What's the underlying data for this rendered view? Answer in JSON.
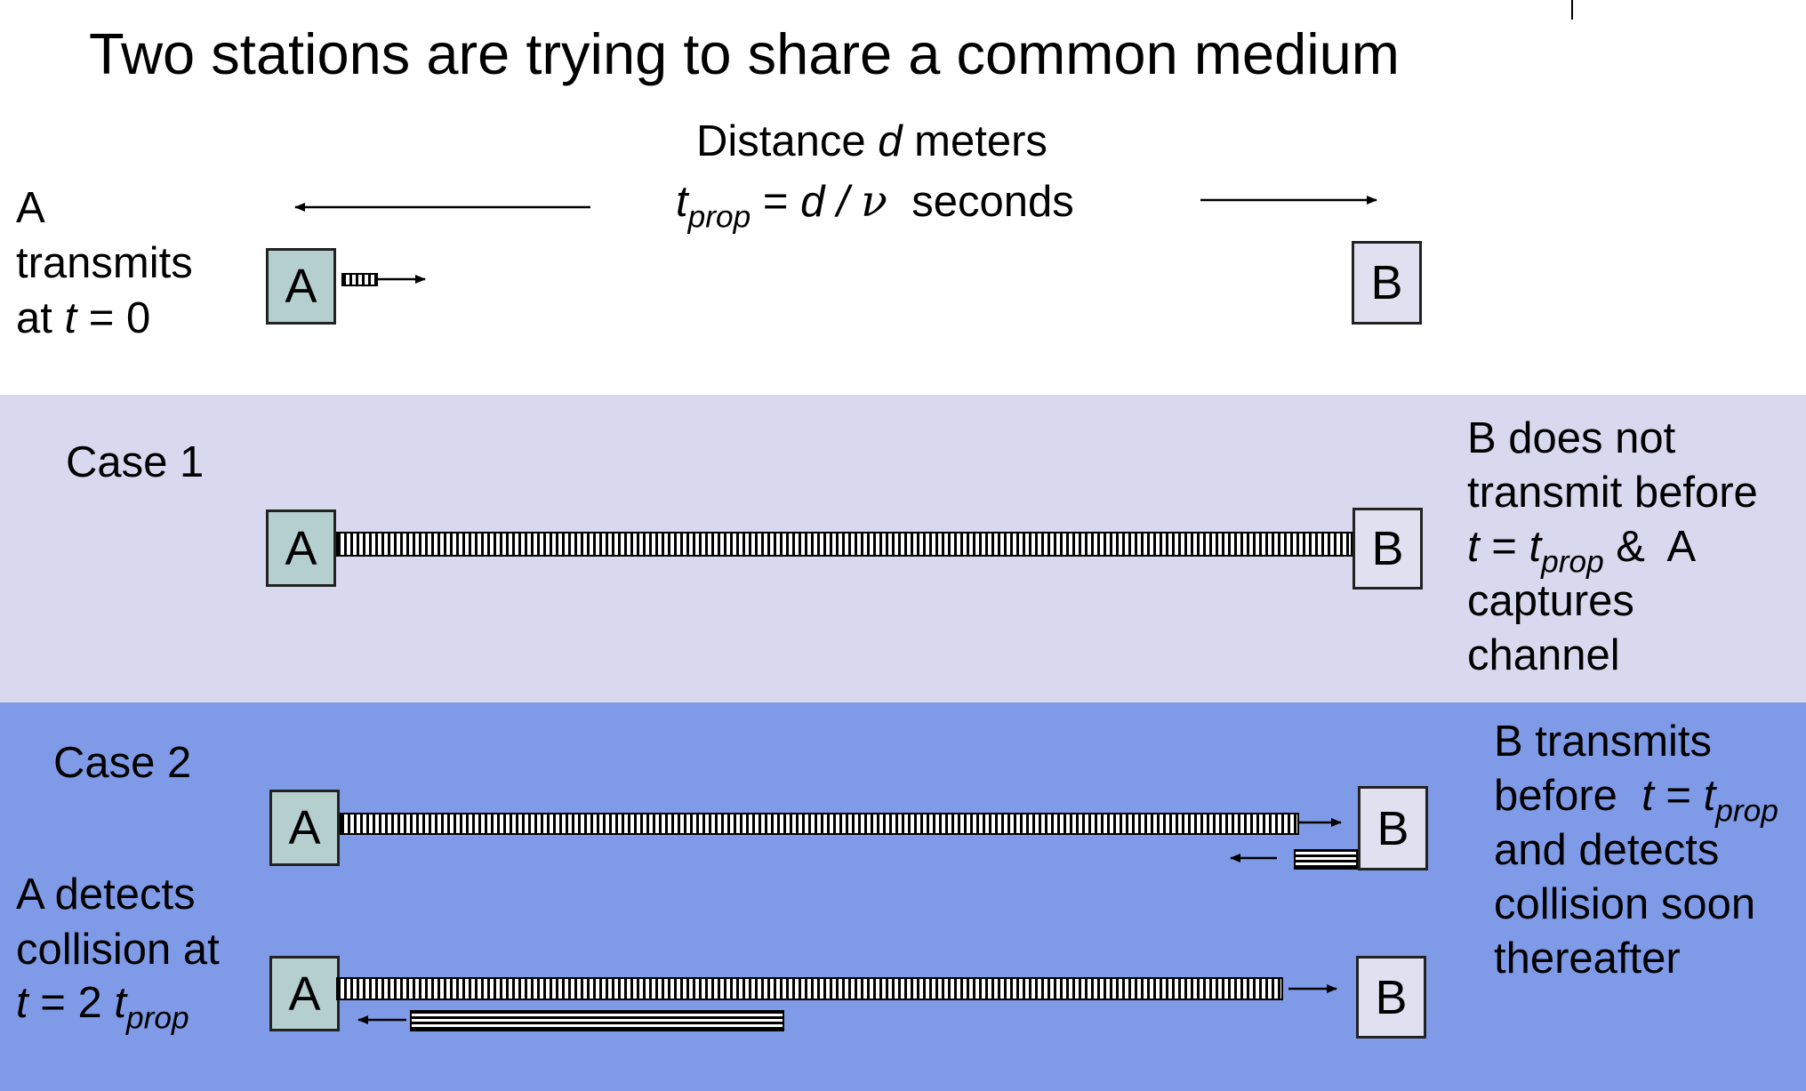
{
  "title": "Two stations are trying to share a common medium",
  "distance": {
    "line1_pre": "Distance ",
    "line1_var": "d",
    "line1_post": " meters",
    "t": "t",
    "prop": "prop",
    "eq": " = ",
    "expr_d": "d",
    "slash": " / ",
    "nu": "ν",
    "seconds": "  seconds"
  },
  "top": {
    "desc_line1": "A",
    "desc_line2": "transmits",
    "desc_line3_pre": "at ",
    "desc_line3_t": "t",
    "desc_line3_post": " = 0",
    "station_a": "A",
    "station_b": "B"
  },
  "case1": {
    "label": "Case 1",
    "station_a": "A",
    "station_b": "B",
    "desc_line1": "B does not",
    "desc_line2": "transmit before",
    "desc_line3_t1": "t",
    "desc_line3_eq": " = ",
    "desc_line3_t2": "t",
    "desc_line3_sub": "prop",
    "desc_line3_post": " &  A",
    "desc_line4": "captures",
    "desc_line5": "channel"
  },
  "case2": {
    "label": "Case 2",
    "station_a_1": "A",
    "station_b_1": "B",
    "station_a_2": "A",
    "station_b_2": "B",
    "desc_line1": "B transmits",
    "desc_line2_pre": "before  ",
    "desc_line2_t1": "t",
    "desc_line2_eq": " = ",
    "desc_line2_t2": "t",
    "desc_line2_sub": "prop",
    "desc_line3": "and detects",
    "desc_line4": "collision soon",
    "desc_line5": "thereafter",
    "left_line1": "A detects",
    "left_line2": "collision at",
    "left_line3_t": "t",
    "left_line3_mid": " = 2 ",
    "left_line3_t2": "t",
    "left_line3_sub": "prop"
  }
}
